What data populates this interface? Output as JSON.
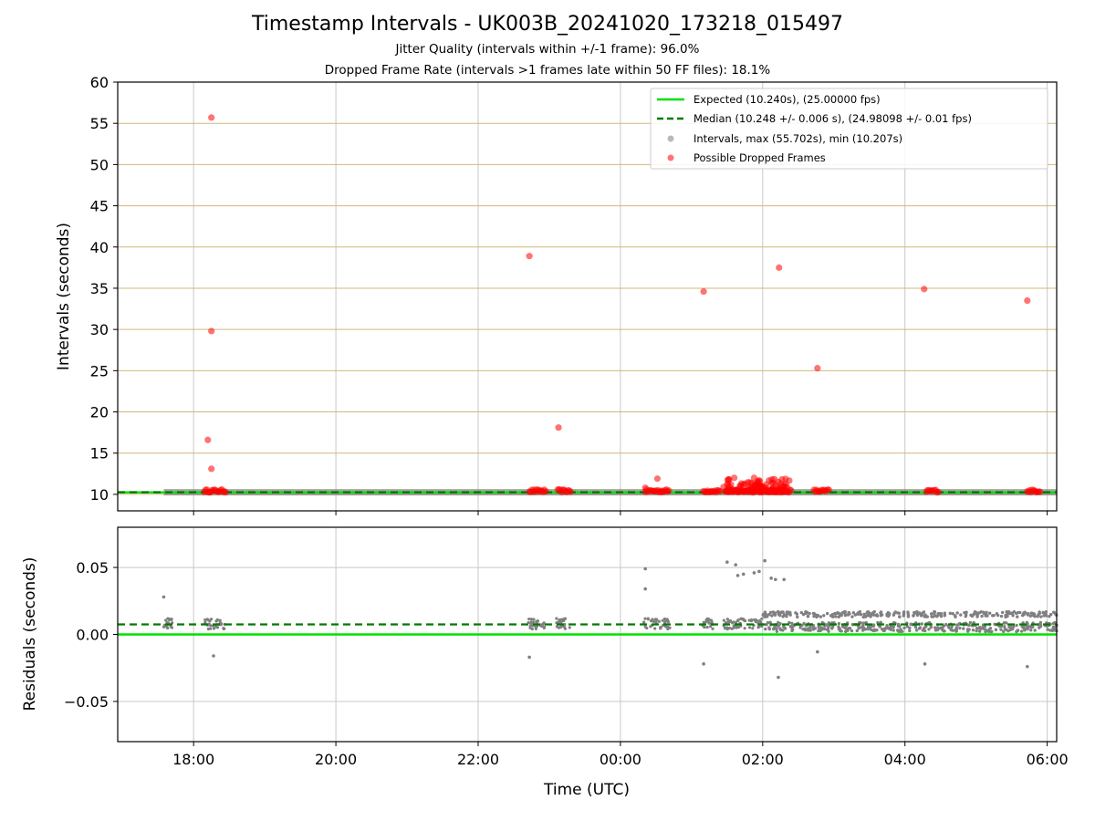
{
  "title": "Timestamp Intervals - UK003B_20241020_173218_015497",
  "subtitle_jitter": "Jitter Quality (intervals within +/-1 frame): 96.0%",
  "subtitle_dropped": "Dropped Frame Rate (intervals >1 frames late within 50 FF files): 18.1%",
  "colors": {
    "expected": "#00e000",
    "median": "#007a00",
    "intervals": "#808080",
    "dropped": "#ff0000",
    "hgrid_top": "#d4b878",
    "grid": "#c8c8c8"
  },
  "chart_data": [
    {
      "type": "scatter",
      "panel": "intervals",
      "ylabel": "Intervals (seconds)",
      "ylim": [
        8,
        60
      ],
      "yticks": [
        "10",
        "15",
        "20",
        "25",
        "30",
        "35",
        "40",
        "45",
        "50",
        "55",
        "60"
      ],
      "xlim_hours": [
        16.933,
        30.133
      ],
      "grid": true,
      "legend_position": "upper-right",
      "legend": {
        "expected": "Expected (10.240s), (25.00000 fps)",
        "median": "Median (10.248 +/- 0.006 s), (24.98098 +/- 0.01 fps)",
        "intervals": "Intervals, max (55.702s), min (10.207s)",
        "dropped": "Possible Dropped Frames"
      },
      "expected_value": 10.24,
      "median_value": 10.248,
      "interval_band": {
        "x_range_hours": [
          17.58,
          30.133
        ],
        "value": 10.24
      },
      "dropped_points": [
        {
          "x": 18.25,
          "y": 55.7
        },
        {
          "x": 18.25,
          "y": 29.8
        },
        {
          "x": 18.2,
          "y": 16.6
        },
        {
          "x": 18.25,
          "y": 13.1
        },
        {
          "x": 22.72,
          "y": 38.9
        },
        {
          "x": 23.13,
          "y": 18.1
        },
        {
          "x": 24.52,
          "y": 11.9
        },
        {
          "x": 25.17,
          "y": 34.6
        },
        {
          "x": 26.23,
          "y": 37.5
        },
        {
          "x": 26.77,
          "y": 25.3
        },
        {
          "x": 28.27,
          "y": 34.9
        },
        {
          "x": 29.72,
          "y": 33.5
        },
        {
          "x": 24.35,
          "y": 10.8
        },
        {
          "x": 25.52,
          "y": 11.8
        },
        {
          "x": 25.6,
          "y": 12.0
        },
        {
          "x": 25.75,
          "y": 11.3
        },
        {
          "x": 25.88,
          "y": 12.0
        },
        {
          "x": 25.95,
          "y": 11.7
        },
        {
          "x": 26.05,
          "y": 11.2
        },
        {
          "x": 26.13,
          "y": 11.8
        },
        {
          "x": 26.22,
          "y": 11.5
        },
        {
          "x": 26.3,
          "y": 11.1
        },
        {
          "x": 25.68,
          "y": 11.0
        },
        {
          "x": 25.82,
          "y": 10.9
        },
        {
          "x": 26.0,
          "y": 10.9
        },
        {
          "x": 25.45,
          "y": 10.9
        }
      ],
      "dropped_clusters_hours": [
        [
          18.15,
          18.45
        ],
        [
          22.72,
          22.95
        ],
        [
          23.12,
          23.3
        ],
        [
          24.35,
          24.68
        ],
        [
          25.17,
          25.4
        ],
        [
          25.48,
          26.4
        ],
        [
          26.72,
          26.93
        ],
        [
          28.3,
          28.47
        ],
        [
          29.72,
          29.9
        ]
      ]
    },
    {
      "type": "scatter",
      "panel": "residuals",
      "xlabel": "Time (UTC)",
      "ylabel": "Residuals (seconds)",
      "ylim": [
        -0.08,
        0.08
      ],
      "yticks": [
        "0.05",
        "0.00",
        "−0.05"
      ],
      "xticks": [
        "18:00",
        "20:00",
        "22:00",
        "00:00",
        "02:00",
        "04:00",
        "06:00"
      ],
      "xlim_hours": [
        16.933,
        30.133
      ],
      "grid": true,
      "expected_value": 0.0,
      "median_value": 0.0075,
      "outliers": [
        {
          "x": 17.58,
          "y": 0.028
        },
        {
          "x": 18.28,
          "y": -0.016
        },
        {
          "x": 22.72,
          "y": -0.017
        },
        {
          "x": 24.35,
          "y": 0.049
        },
        {
          "x": 24.35,
          "y": 0.034
        },
        {
          "x": 25.17,
          "y": -0.022
        },
        {
          "x": 25.5,
          "y": 0.054
        },
        {
          "x": 25.62,
          "y": 0.052
        },
        {
          "x": 25.65,
          "y": 0.044
        },
        {
          "x": 25.73,
          "y": 0.045
        },
        {
          "x": 25.88,
          "y": 0.046
        },
        {
          "x": 25.95,
          "y": 0.047
        },
        {
          "x": 26.03,
          "y": 0.055
        },
        {
          "x": 26.12,
          "y": 0.042
        },
        {
          "x": 26.18,
          "y": 0.041
        },
        {
          "x": 26.3,
          "y": 0.041
        },
        {
          "x": 26.22,
          "y": -0.032
        },
        {
          "x": 26.77,
          "y": -0.013
        },
        {
          "x": 28.28,
          "y": -0.022
        },
        {
          "x": 29.72,
          "y": -0.024
        }
      ],
      "dense_region_hours": [
        26.0,
        30.133
      ],
      "dense_band": [
        0.002,
        0.017
      ]
    }
  ]
}
